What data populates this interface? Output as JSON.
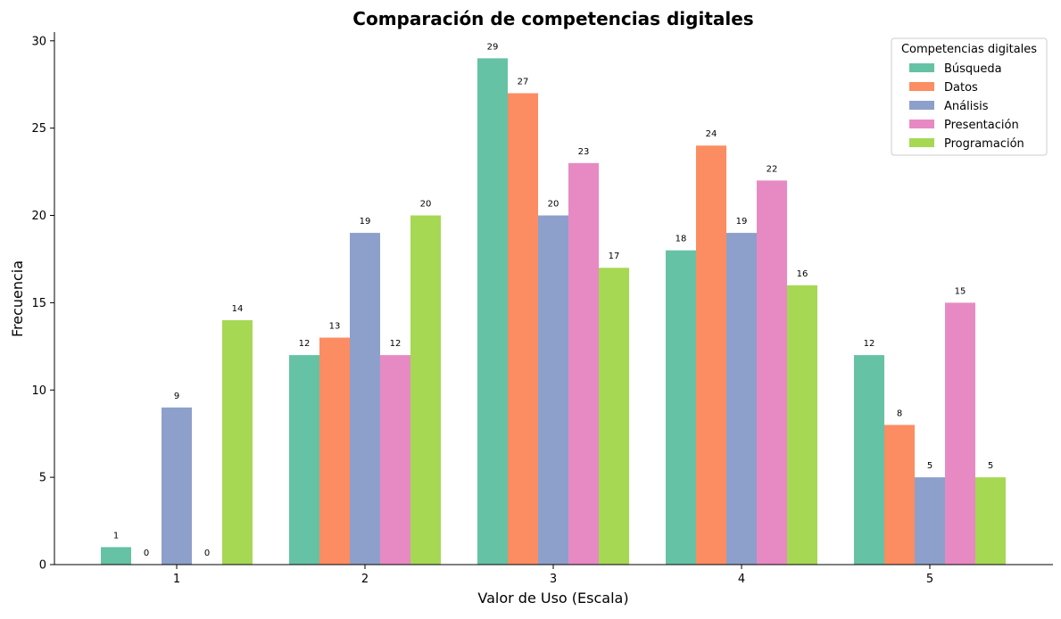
{
  "chart_data": {
    "type": "bar",
    "title": "Comparación de competencias digitales",
    "xlabel": "Valor de Uso (Escala)",
    "ylabel": "Frecuencia",
    "categories": [
      "1",
      "2",
      "3",
      "4",
      "5"
    ],
    "ylim": [
      0,
      30.5
    ],
    "yticks": [
      0,
      5,
      10,
      15,
      20,
      25,
      30
    ],
    "grid": false,
    "legend_title": "Competencias digitales",
    "legend_position": "top-right",
    "series": [
      {
        "name": "Búsqueda",
        "color": "#66c2a5",
        "values": [
          1,
          12,
          29,
          18,
          12
        ]
      },
      {
        "name": "Datos",
        "color": "#fc8d62",
        "values": [
          0,
          13,
          27,
          24,
          8
        ]
      },
      {
        "name": "Análisis",
        "color": "#8da0cb",
        "values": [
          9,
          19,
          20,
          19,
          5
        ]
      },
      {
        "name": "Presentación",
        "color": "#e78ac3",
        "values": [
          0,
          12,
          23,
          22,
          15
        ]
      },
      {
        "name": "Programación",
        "color": "#a6d854",
        "values": [
          14,
          20,
          17,
          16,
          5
        ]
      }
    ]
  }
}
